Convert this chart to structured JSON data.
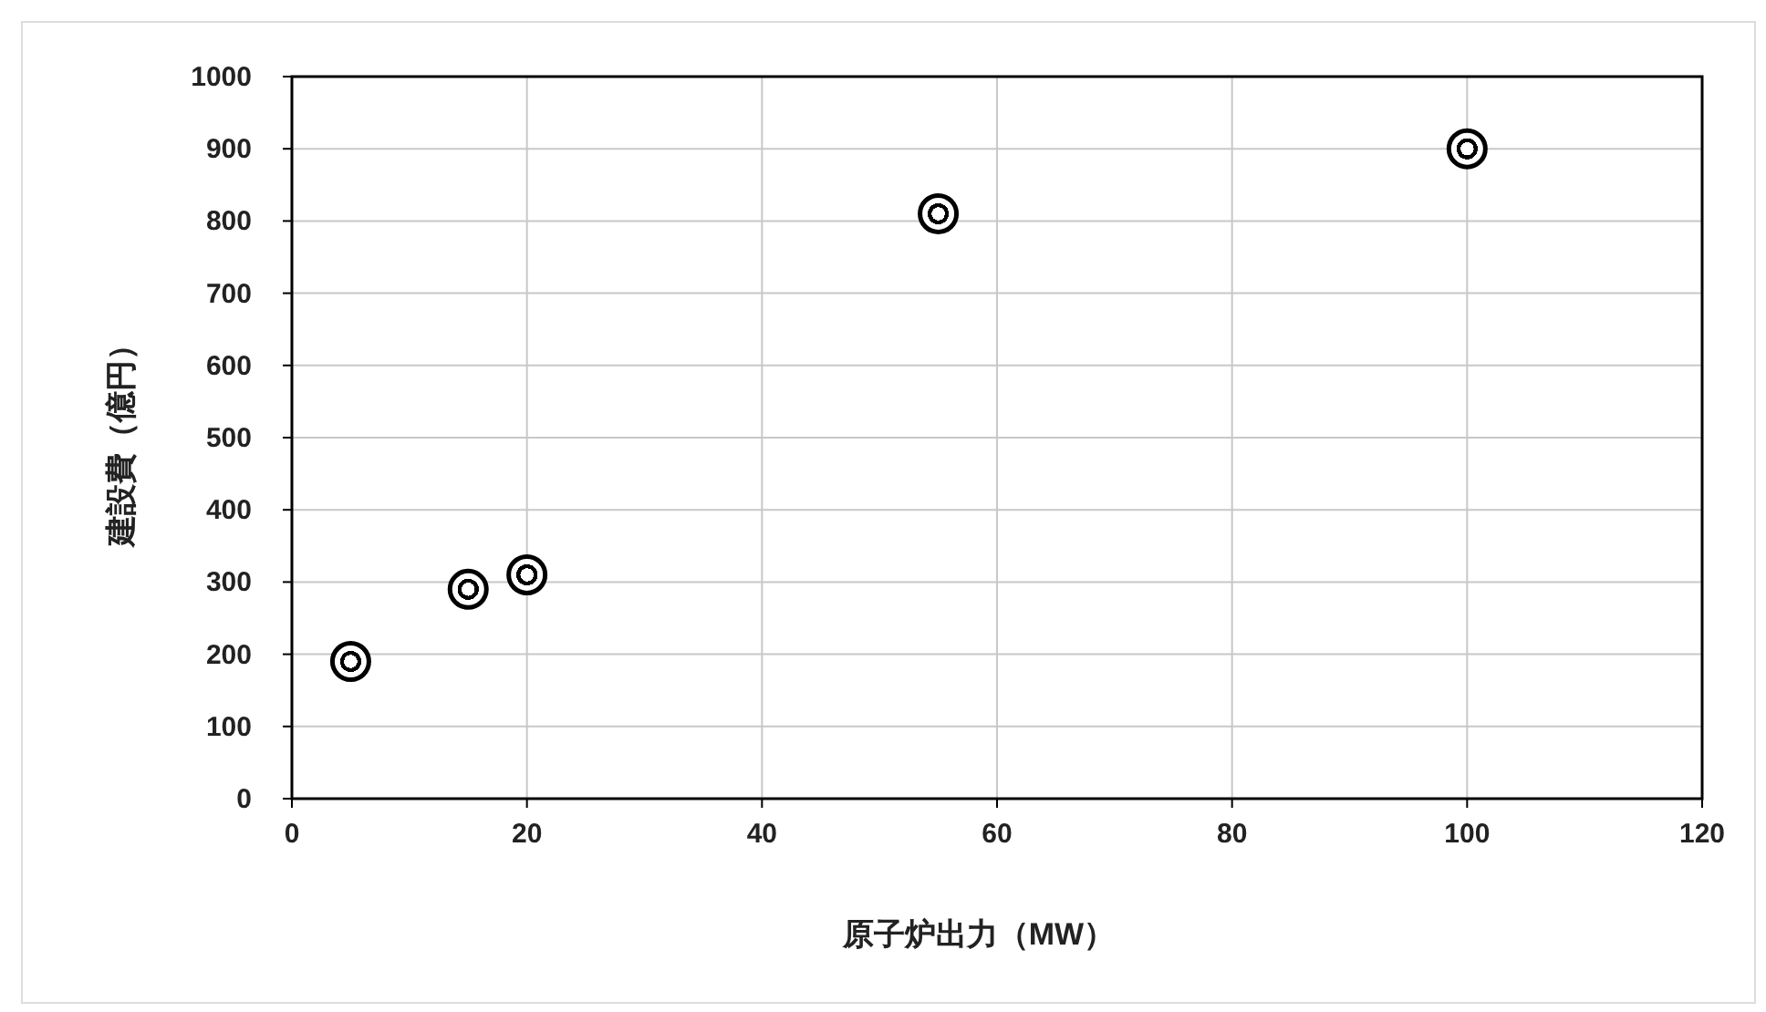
{
  "chart_data": {
    "type": "scatter",
    "xlabel": "原子炉出力（MW）",
    "ylabel": "建設費（億円）",
    "x": [
      5,
      15,
      20,
      55,
      100
    ],
    "series": [
      {
        "color": "#000000",
        "values": [
          190,
          290,
          310,
          810,
          900
        ]
      }
    ],
    "xlim": [
      0,
      120
    ],
    "xticks": [
      0,
      20,
      40,
      60,
      80,
      100,
      120
    ],
    "ylim": [
      0,
      1000
    ],
    "yticks": [
      0,
      100,
      200,
      300,
      400,
      500,
      600,
      700,
      800,
      900,
      1000
    ],
    "grid": true,
    "marker": "circle"
  }
}
